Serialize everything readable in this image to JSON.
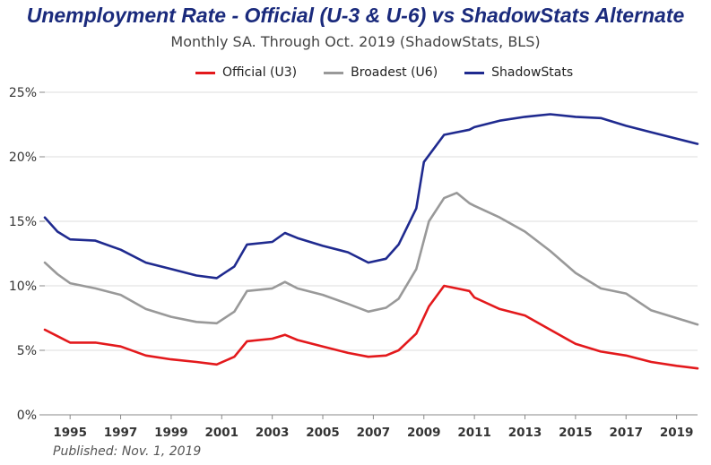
{
  "chart_data": {
    "type": "line",
    "title": "Unemployment Rate - Official (U-3 & U-6) vs ShadowStats Alternate",
    "subtitle": "Monthly SA. Through Oct. 2019  (ShadowStats, BLS)",
    "footnote": "Published: Nov. 1, 2019",
    "ylim": [
      0,
      25
    ],
    "xlim": [
      1994.0,
      2019.83
    ],
    "y_ticks": [
      0,
      5,
      10,
      15,
      20,
      25
    ],
    "y_tick_labels": [
      "0%",
      "5%",
      "10%",
      "15%",
      "20%",
      "25%"
    ],
    "x_ticks": [
      1995,
      1997,
      1999,
      2001,
      2003,
      2005,
      2007,
      2009,
      2011,
      2013,
      2015,
      2017,
      2019
    ],
    "x_tick_labels": [
      "1995",
      "1997",
      "1999",
      "2001",
      "2003",
      "2005",
      "2007",
      "2009",
      "2011",
      "2013",
      "2015",
      "2017",
      "2019"
    ],
    "grid": "horizontal",
    "legend_position": "top",
    "series": [
      {
        "name": "Official (U3)",
        "color": "#e3191c",
        "points": [
          [
            1994.0,
            6.6
          ],
          [
            1994.5,
            6.1
          ],
          [
            1995.0,
            5.6
          ],
          [
            1996.0,
            5.6
          ],
          [
            1997.0,
            5.3
          ],
          [
            1998.0,
            4.6
          ],
          [
            1999.0,
            4.3
          ],
          [
            2000.0,
            4.1
          ],
          [
            2000.8,
            3.9
          ],
          [
            2001.5,
            4.5
          ],
          [
            2002.0,
            5.7
          ],
          [
            2003.0,
            5.9
          ],
          [
            2003.5,
            6.2
          ],
          [
            2004.0,
            5.8
          ],
          [
            2005.0,
            5.3
          ],
          [
            2006.0,
            4.8
          ],
          [
            2006.8,
            4.5
          ],
          [
            2007.5,
            4.6
          ],
          [
            2008.0,
            5.0
          ],
          [
            2008.7,
            6.3
          ],
          [
            2009.2,
            8.4
          ],
          [
            2009.8,
            10.0
          ],
          [
            2010.3,
            9.8
          ],
          [
            2010.8,
            9.6
          ],
          [
            2011.0,
            9.1
          ],
          [
            2012.0,
            8.2
          ],
          [
            2013.0,
            7.7
          ],
          [
            2014.0,
            6.6
          ],
          [
            2015.0,
            5.5
          ],
          [
            2016.0,
            4.9
          ],
          [
            2017.0,
            4.6
          ],
          [
            2018.0,
            4.1
          ],
          [
            2019.0,
            3.8
          ],
          [
            2019.83,
            3.6
          ]
        ]
      },
      {
        "name": "Broadest (U6)",
        "color": "#999999",
        "points": [
          [
            1994.0,
            11.8
          ],
          [
            1994.5,
            10.9
          ],
          [
            1995.0,
            10.2
          ],
          [
            1996.0,
            9.8
          ],
          [
            1997.0,
            9.3
          ],
          [
            1998.0,
            8.2
          ],
          [
            1999.0,
            7.6
          ],
          [
            2000.0,
            7.2
          ],
          [
            2000.8,
            7.1
          ],
          [
            2001.5,
            8.0
          ],
          [
            2002.0,
            9.6
          ],
          [
            2003.0,
            9.8
          ],
          [
            2003.5,
            10.3
          ],
          [
            2004.0,
            9.8
          ],
          [
            2005.0,
            9.3
          ],
          [
            2006.0,
            8.6
          ],
          [
            2006.8,
            8.0
          ],
          [
            2007.5,
            8.3
          ],
          [
            2008.0,
            9.0
          ],
          [
            2008.7,
            11.3
          ],
          [
            2009.2,
            15.0
          ],
          [
            2009.8,
            16.8
          ],
          [
            2010.3,
            17.2
          ],
          [
            2010.8,
            16.4
          ],
          [
            2011.0,
            16.2
          ],
          [
            2012.0,
            15.3
          ],
          [
            2013.0,
            14.2
          ],
          [
            2014.0,
            12.7
          ],
          [
            2015.0,
            11.0
          ],
          [
            2016.0,
            9.8
          ],
          [
            2017.0,
            9.4
          ],
          [
            2018.0,
            8.1
          ],
          [
            2019.0,
            7.5
          ],
          [
            2019.83,
            7.0
          ]
        ]
      },
      {
        "name": "ShadowStats",
        "color": "#1f2a8f",
        "points": [
          [
            1994.0,
            15.3
          ],
          [
            1994.5,
            14.2
          ],
          [
            1995.0,
            13.6
          ],
          [
            1996.0,
            13.5
          ],
          [
            1997.0,
            12.8
          ],
          [
            1998.0,
            11.8
          ],
          [
            1999.0,
            11.3
          ],
          [
            2000.0,
            10.8
          ],
          [
            2000.8,
            10.6
          ],
          [
            2001.5,
            11.5
          ],
          [
            2002.0,
            13.2
          ],
          [
            2003.0,
            13.4
          ],
          [
            2003.5,
            14.1
          ],
          [
            2004.0,
            13.7
          ],
          [
            2005.0,
            13.1
          ],
          [
            2006.0,
            12.6
          ],
          [
            2006.8,
            11.8
          ],
          [
            2007.5,
            12.1
          ],
          [
            2008.0,
            13.2
          ],
          [
            2008.7,
            16.0
          ],
          [
            2009.0,
            19.6
          ],
          [
            2009.8,
            21.7
          ],
          [
            2010.3,
            21.9
          ],
          [
            2010.8,
            22.1
          ],
          [
            2011.0,
            22.3
          ],
          [
            2012.0,
            22.8
          ],
          [
            2013.0,
            23.1
          ],
          [
            2014.0,
            23.3
          ],
          [
            2015.0,
            23.1
          ],
          [
            2016.0,
            23.0
          ],
          [
            2017.0,
            22.4
          ],
          [
            2018.0,
            21.9
          ],
          [
            2019.0,
            21.4
          ],
          [
            2019.83,
            21.0
          ]
        ]
      }
    ]
  }
}
